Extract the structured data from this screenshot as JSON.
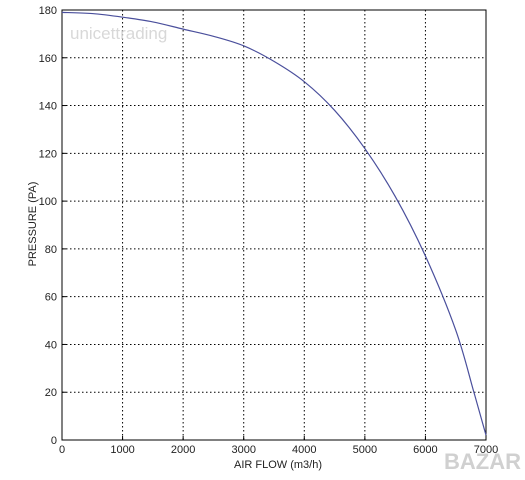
{
  "chart_data": {
    "type": "line",
    "title": "",
    "xlabel": "AIR FLOW (m3/h)",
    "ylabel": "PRESSURE (PA)",
    "xlim": [
      0,
      7000
    ],
    "ylim": [
      0,
      180
    ],
    "xticks": [
      "0",
      "1000",
      "2000",
      "3000",
      "4000",
      "5000",
      "6000",
      "7000"
    ],
    "yticks": [
      "0",
      "20",
      "40",
      "60",
      "80",
      "100",
      "120",
      "140",
      "160",
      "180"
    ],
    "grid": true,
    "grid_style": "dotted",
    "legend": "none",
    "series": [
      {
        "color": "#4a4f9c",
        "x": [
          0,
          500,
          1000,
          1500,
          2000,
          2500,
          3000,
          3500,
          4000,
          4500,
          5000,
          5500,
          6000,
          6500,
          6800,
          7000
        ],
        "y": [
          179,
          178.5,
          177,
          175,
          172,
          169,
          165,
          158.5,
          150,
          138,
          122,
          102,
          77,
          46,
          20,
          2
        ]
      }
    ]
  },
  "watermarks": {
    "top": "unicettrading",
    "corner": "BAZAR"
  }
}
